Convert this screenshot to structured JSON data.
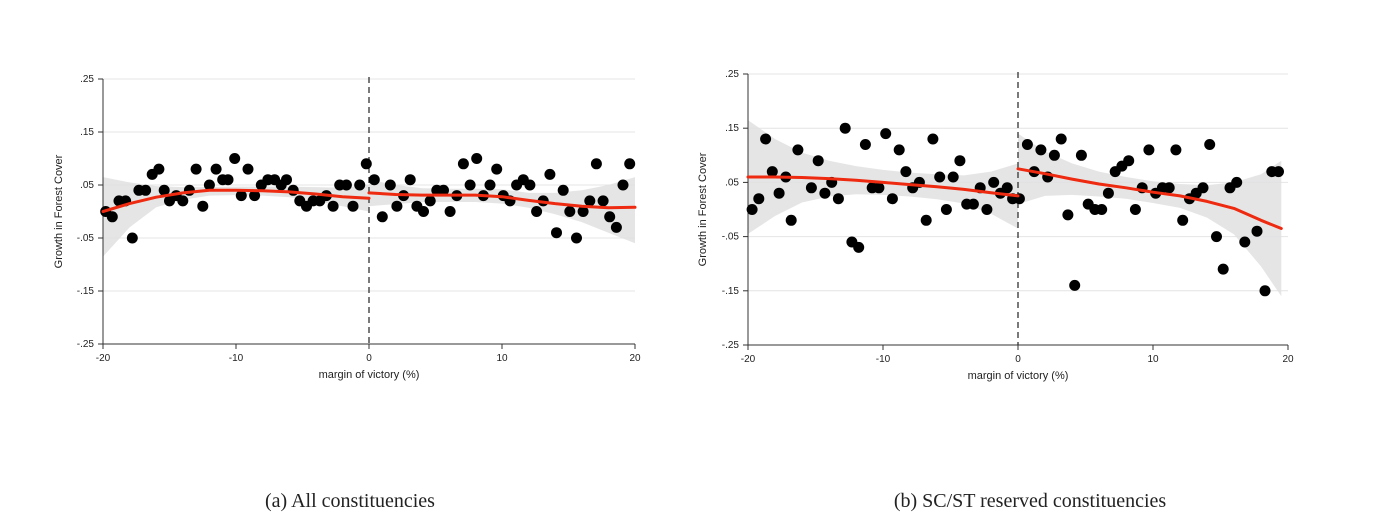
{
  "chart_data": [
    {
      "type": "scatter",
      "title": "",
      "caption": "(a) All constituencies",
      "xlabel": "margin of victory (%)",
      "ylabel": "Growth in Forest Cover",
      "xlim": [
        -20,
        20
      ],
      "ylim": [
        -0.25,
        0.25
      ],
      "xticks": [
        "-20",
        "-10",
        "0",
        "10",
        "20"
      ],
      "yticks": [
        ".25",
        ".15",
        ".05",
        "-.05",
        "-.15",
        "-.25"
      ],
      "cutoff": 0,
      "points": [
        [
          -19.8,
          0.0
        ],
        [
          -19.3,
          -0.01
        ],
        [
          -18.8,
          0.02
        ],
        [
          -18.3,
          0.02
        ],
        [
          -17.8,
          -0.05
        ],
        [
          -17.3,
          0.04
        ],
        [
          -16.8,
          0.04
        ],
        [
          -16.3,
          0.07
        ],
        [
          -15.8,
          0.08
        ],
        [
          -15.4,
          0.04
        ],
        [
          -15.0,
          0.02
        ],
        [
          -14.5,
          0.03
        ],
        [
          -14.0,
          0.02
        ],
        [
          -13.5,
          0.04
        ],
        [
          -13.0,
          0.08
        ],
        [
          -12.5,
          0.01
        ],
        [
          -12.0,
          0.05
        ],
        [
          -11.5,
          0.08
        ],
        [
          -11.0,
          0.06
        ],
        [
          -10.6,
          0.06
        ],
        [
          -10.1,
          0.1
        ],
        [
          -9.6,
          0.03
        ],
        [
          -9.1,
          0.08
        ],
        [
          -8.6,
          0.03
        ],
        [
          -8.1,
          0.05
        ],
        [
          -7.6,
          0.06
        ],
        [
          -7.1,
          0.06
        ],
        [
          -6.6,
          0.05
        ],
        [
          -6.2,
          0.06
        ],
        [
          -5.7,
          0.04
        ],
        [
          -5.2,
          0.02
        ],
        [
          -4.7,
          0.01
        ],
        [
          -4.2,
          0.02
        ],
        [
          -3.7,
          0.02
        ],
        [
          -3.2,
          0.03
        ],
        [
          -2.7,
          0.01
        ],
        [
          -2.2,
          0.05
        ],
        [
          -1.7,
          0.05
        ],
        [
          -1.2,
          0.01
        ],
        [
          -0.7,
          0.05
        ],
        [
          -0.2,
          0.09
        ],
        [
          0.4,
          0.06
        ],
        [
          1.0,
          -0.01
        ],
        [
          1.6,
          0.05
        ],
        [
          2.1,
          0.01
        ],
        [
          2.6,
          0.03
        ],
        [
          3.1,
          0.06
        ],
        [
          3.6,
          0.01
        ],
        [
          4.1,
          0.0
        ],
        [
          4.6,
          0.02
        ],
        [
          5.1,
          0.04
        ],
        [
          5.6,
          0.04
        ],
        [
          6.1,
          0.0
        ],
        [
          6.6,
          0.03
        ],
        [
          7.1,
          0.09
        ],
        [
          7.6,
          0.05
        ],
        [
          8.1,
          0.1
        ],
        [
          8.6,
          0.03
        ],
        [
          9.1,
          0.05
        ],
        [
          9.6,
          0.08
        ],
        [
          10.1,
          0.03
        ],
        [
          10.6,
          0.02
        ],
        [
          11.1,
          0.05
        ],
        [
          11.6,
          0.06
        ],
        [
          12.1,
          0.05
        ],
        [
          12.6,
          0.0
        ],
        [
          13.1,
          0.02
        ],
        [
          13.6,
          0.07
        ],
        [
          14.1,
          -0.04
        ],
        [
          14.6,
          0.04
        ],
        [
          15.1,
          0.0
        ],
        [
          15.6,
          -0.05
        ],
        [
          16.1,
          0.0
        ],
        [
          16.6,
          0.02
        ],
        [
          17.1,
          0.09
        ],
        [
          17.6,
          0.02
        ],
        [
          18.1,
          -0.01
        ],
        [
          18.6,
          -0.03
        ],
        [
          19.1,
          0.05
        ],
        [
          19.6,
          0.09
        ]
      ],
      "fit_left": {
        "x": [
          -20,
          -18,
          -16,
          -14,
          -12,
          -10,
          -8,
          -6,
          -4,
          -2,
          0
        ],
        "y": [
          0.0,
          0.015,
          0.027,
          0.035,
          0.04,
          0.04,
          0.039,
          0.037,
          0.033,
          0.028,
          0.025
        ],
        "ci_upper": [
          0.065,
          0.055,
          0.048,
          0.046,
          0.046,
          0.047,
          0.047,
          0.047,
          0.046,
          0.045,
          0.05
        ],
        "ci_lower": [
          -0.085,
          -0.03,
          0.008,
          0.022,
          0.03,
          0.031,
          0.03,
          0.027,
          0.02,
          0.01,
          0.0
        ]
      },
      "fit_right": {
        "x": [
          0,
          2,
          4,
          6,
          8,
          10,
          12,
          14,
          16,
          18,
          20
        ],
        "y": [
          0.035,
          0.032,
          0.031,
          0.031,
          0.031,
          0.028,
          0.021,
          0.015,
          0.01,
          0.007,
          0.008
        ],
        "ci_upper": [
          0.06,
          0.05,
          0.044,
          0.043,
          0.043,
          0.042,
          0.035,
          0.035,
          0.04,
          0.05,
          0.065
        ],
        "ci_lower": [
          0.01,
          0.014,
          0.018,
          0.018,
          0.018,
          0.015,
          0.007,
          -0.005,
          -0.02,
          -0.04,
          -0.06
        ]
      }
    },
    {
      "type": "scatter",
      "title": "",
      "caption": "(b) SC/ST reserved constituencies",
      "xlabel": "margin of victory (%)",
      "ylabel": "Growth in Forest Cover",
      "xlim": [
        -20,
        20
      ],
      "ylim": [
        -0.25,
        0.25
      ],
      "xticks": [
        "-20",
        "-10",
        "0",
        "10",
        "20"
      ],
      "yticks": [
        ".25",
        ".15",
        ".05",
        "-.05",
        "-.15",
        "-.25"
      ],
      "cutoff": 0,
      "points": [
        [
          -19.7,
          0.0
        ],
        [
          -19.2,
          0.02
        ],
        [
          -18.7,
          0.13
        ],
        [
          -18.2,
          0.07
        ],
        [
          -17.7,
          0.03
        ],
        [
          -17.2,
          0.06
        ],
        [
          -16.8,
          -0.02
        ],
        [
          -16.3,
          0.11
        ],
        [
          -15.3,
          0.04
        ],
        [
          -14.8,
          0.09
        ],
        [
          -14.3,
          0.03
        ],
        [
          -13.8,
          0.05
        ],
        [
          -13.3,
          0.02
        ],
        [
          -12.8,
          0.15
        ],
        [
          -12.3,
          -0.06
        ],
        [
          -11.8,
          -0.07
        ],
        [
          -11.3,
          0.12
        ],
        [
          -10.8,
          0.04
        ],
        [
          -10.3,
          0.04
        ],
        [
          -9.8,
          0.14
        ],
        [
          -9.3,
          0.02
        ],
        [
          -8.8,
          0.11
        ],
        [
          -8.3,
          0.07
        ],
        [
          -7.8,
          0.04
        ],
        [
          -7.3,
          0.05
        ],
        [
          -6.8,
          -0.02
        ],
        [
          -6.3,
          0.13
        ],
        [
          -5.8,
          0.06
        ],
        [
          -5.3,
          0.0
        ],
        [
          -4.8,
          0.06
        ],
        [
          -4.3,
          0.09
        ],
        [
          -3.8,
          0.01
        ],
        [
          -3.3,
          0.01
        ],
        [
          -2.8,
          0.04
        ],
        [
          -2.3,
          0.0
        ],
        [
          -1.8,
          0.05
        ],
        [
          -1.3,
          0.03
        ],
        [
          -0.8,
          0.04
        ],
        [
          -0.4,
          0.02
        ],
        [
          0.1,
          0.02
        ],
        [
          0.7,
          0.12
        ],
        [
          1.2,
          0.07
        ],
        [
          1.7,
          0.11
        ],
        [
          2.2,
          0.06
        ],
        [
          2.7,
          0.1
        ],
        [
          3.2,
          0.13
        ],
        [
          3.7,
          -0.01
        ],
        [
          4.2,
          -0.14
        ],
        [
          4.7,
          0.1
        ],
        [
          5.2,
          0.01
        ],
        [
          5.7,
          0.0
        ],
        [
          6.2,
          0.0
        ],
        [
          6.7,
          0.03
        ],
        [
          7.2,
          0.07
        ],
        [
          7.7,
          0.08
        ],
        [
          8.2,
          0.09
        ],
        [
          8.7,
          0.0
        ],
        [
          9.2,
          0.04
        ],
        [
          9.7,
          0.11
        ],
        [
          10.2,
          0.03
        ],
        [
          10.7,
          0.04
        ],
        [
          11.2,
          0.04
        ],
        [
          11.7,
          0.11
        ],
        [
          12.2,
          -0.02
        ],
        [
          12.7,
          0.02
        ],
        [
          13.2,
          0.03
        ],
        [
          13.7,
          0.04
        ],
        [
          14.2,
          0.12
        ],
        [
          14.7,
          -0.05
        ],
        [
          15.2,
          -0.11
        ],
        [
          15.7,
          0.04
        ],
        [
          16.2,
          0.05
        ],
        [
          16.8,
          -0.06
        ],
        [
          17.7,
          -0.04
        ],
        [
          18.3,
          -0.15
        ],
        [
          18.8,
          0.07
        ],
        [
          19.3,
          0.07
        ]
      ],
      "fit_left": {
        "x": [
          -20,
          -18,
          -16,
          -14,
          -12,
          -10,
          -8,
          -6,
          -4,
          -2,
          0
        ],
        "y": [
          0.06,
          0.06,
          0.059,
          0.057,
          0.054,
          0.05,
          0.046,
          0.042,
          0.037,
          0.031,
          0.025
        ],
        "ci_upper": [
          0.165,
          0.13,
          0.105,
          0.09,
          0.08,
          0.073,
          0.068,
          0.065,
          0.063,
          0.07,
          0.085
        ],
        "ci_lower": [
          -0.045,
          -0.012,
          0.013,
          0.024,
          0.028,
          0.027,
          0.024,
          0.019,
          0.011,
          -0.008,
          -0.035
        ]
      },
      "fit_right": {
        "x": [
          0,
          2,
          4,
          6,
          8,
          10,
          12,
          14,
          16,
          18,
          19.5
        ],
        "y": [
          0.075,
          0.066,
          0.056,
          0.047,
          0.04,
          0.032,
          0.025,
          0.015,
          0.002,
          -0.02,
          -0.035
        ],
        "ci_upper": [
          0.14,
          0.107,
          0.085,
          0.07,
          0.06,
          0.052,
          0.047,
          0.045,
          0.05,
          0.065,
          0.09
        ],
        "ci_lower": [
          0.01,
          0.025,
          0.027,
          0.024,
          0.02,
          0.012,
          0.003,
          -0.015,
          -0.046,
          -0.105,
          -0.16
        ]
      }
    }
  ]
}
